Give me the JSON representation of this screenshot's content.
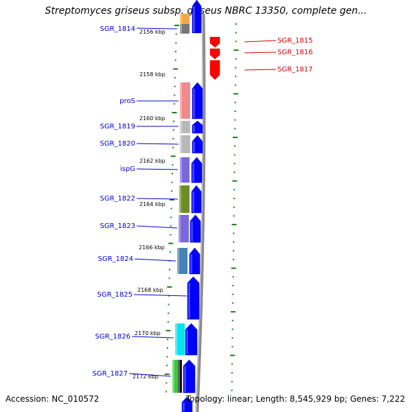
{
  "title": "Streptomyces griseus subsp. griseus NBRC 13350, complete gen...",
  "accession": "Accession: NC_010572",
  "summary": "Topology: linear; Length: 8,545,929 bp; Genes: 7,222",
  "colors": {
    "forward_gene": "#0000ff",
    "reverse_gene": "#ff0000",
    "tick": "#1a7a1a",
    "left_label": "#0000cc",
    "right_label": "#cc0000",
    "backbone": "#8a8a8a"
  },
  "scale_labels": [
    "2156 kbp",
    "2158 kbp",
    "2160 kbp",
    "2162 kbp",
    "2164 kbp",
    "2166 kbp",
    "2168 kbp",
    "2170 kbp",
    "2172 kbp"
  ],
  "left_genes": [
    {
      "label": "SGR_1814",
      "color": "#777777"
    },
    {
      "label": "proS",
      "color": "#f08a8a"
    },
    {
      "label": "SGR_1819",
      "color": "#b8b8b8"
    },
    {
      "label": "SGR_1820",
      "color": "#b8b8b8"
    },
    {
      "label": "ispG",
      "color": "#7b68dd"
    },
    {
      "label": "SGR_1822",
      "color": "#6b8e23"
    },
    {
      "label": "SGR_1823",
      "color": "#7b68dd"
    },
    {
      "label": "SGR_1824",
      "color": "#4682b4"
    },
    {
      "label": "SGR_1825",
      "color": ""
    },
    {
      "label": "SGR_1826",
      "color": "#00e5ee"
    },
    {
      "label": "SGR_1827",
      "color": "#33cc33"
    }
  ],
  "right_genes": [
    {
      "label": "SGR_1815"
    },
    {
      "label": "SGR_1816"
    },
    {
      "label": "SGR_1817"
    }
  ]
}
